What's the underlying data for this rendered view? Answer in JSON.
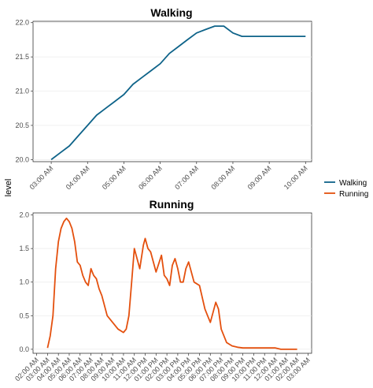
{
  "ylabel": "level",
  "legend": {
    "placement": "right",
    "items": [
      {
        "label": "Walking",
        "color": "#0e6389"
      },
      {
        "label": "Running",
        "color": "#e4500e"
      }
    ]
  },
  "chart_data": [
    {
      "type": "line",
      "title": "Walking",
      "series": [
        {
          "name": "Walking",
          "color": "#0e6389"
        }
      ],
      "x": [
        "03:00 AM",
        "03:15 AM",
        "03:30 AM",
        "03:45 AM",
        "04:00 AM",
        "04:15 AM",
        "04:30 AM",
        "04:45 AM",
        "05:00 AM",
        "05:15 AM",
        "05:30 AM",
        "05:45 AM",
        "06:00 AM",
        "06:15 AM",
        "06:30 AM",
        "06:45 AM",
        "07:00 AM",
        "07:15 AM",
        "07:30 AM",
        "07:45 AM",
        "08:00 AM",
        "08:15 AM",
        "08:30 AM",
        "09:00 AM",
        "09:30 AM",
        "10:00 AM"
      ],
      "y": [
        20.0,
        20.1,
        20.2,
        20.35,
        20.5,
        20.65,
        20.75,
        20.85,
        20.95,
        21.1,
        21.2,
        21.3,
        21.4,
        21.55,
        21.65,
        21.75,
        21.85,
        21.9,
        21.95,
        21.95,
        21.85,
        21.8,
        21.8,
        21.8,
        21.8,
        21.8
      ],
      "x_ticks": [
        "03:00 AM",
        "04:00 AM",
        "05:00 AM",
        "06:00 AM",
        "07:00 AM",
        "08:00 AM",
        "09:00 AM",
        "10:00 AM"
      ],
      "y_ticks": [
        "20.0",
        "20.5",
        "21.0",
        "21.5",
        "22.0"
      ],
      "ylim": [
        19.97,
        22.02
      ],
      "grid": true
    },
    {
      "type": "line",
      "title": "Running",
      "series": [
        {
          "name": "Running",
          "color": "#e4500e"
        }
      ],
      "x": [
        "03:00 AM",
        "03:15 AM",
        "03:30 AM",
        "03:45 AM",
        "04:00 AM",
        "04:15 AM",
        "04:30 AM",
        "04:45 AM",
        "05:00 AM",
        "05:15 AM",
        "05:30 AM",
        "05:45 AM",
        "06:00 AM",
        "06:15 AM",
        "06:30 AM",
        "06:45 AM",
        "07:00 AM",
        "07:15 AM",
        "07:30 AM",
        "07:45 AM",
        "08:00 AM",
        "08:30 AM",
        "09:00 AM",
        "09:30 AM",
        "10:00 AM",
        "10:15 AM",
        "10:30 AM",
        "10:45 AM",
        "11:00 AM",
        "11:30 AM",
        "11:50 AM",
        "12:00 PM",
        "12:15 PM",
        "12:30 PM",
        "01:00 PM",
        "01:30 PM",
        "01:45 PM",
        "02:00 PM",
        "02:15 PM",
        "02:30 PM",
        "02:45 PM",
        "03:00 PM",
        "03:15 PM",
        "03:30 PM",
        "03:45 PM",
        "04:00 PM",
        "04:30 PM",
        "05:00 PM",
        "05:30 PM",
        "05:45 PM",
        "06:00 PM",
        "06:30 PM",
        "06:45 PM",
        "07:00 PM",
        "07:30 PM",
        "08:00 PM",
        "08:30 PM",
        "09:00 PM",
        "09:30 PM",
        "10:00 PM",
        "10:30 PM",
        "11:00 PM",
        "12:00 AM",
        "12:30 AM",
        "01:00 AM",
        "01:30 AM",
        "02:00 AM"
      ],
      "y": [
        0.02,
        0.2,
        0.5,
        1.2,
        1.6,
        1.8,
        1.9,
        1.95,
        1.9,
        1.8,
        1.6,
        1.3,
        1.25,
        1.1,
        1.0,
        0.95,
        1.2,
        1.1,
        1.05,
        0.9,
        0.8,
        0.5,
        0.4,
        0.3,
        0.25,
        0.3,
        0.5,
        1.0,
        1.5,
        1.2,
        1.55,
        1.65,
        1.5,
        1.45,
        1.15,
        1.4,
        1.1,
        1.05,
        0.95,
        1.25,
        1.35,
        1.2,
        1.0,
        1.0,
        1.2,
        1.3,
        1.0,
        0.95,
        0.6,
        0.5,
        0.4,
        0.7,
        0.6,
        0.3,
        0.1,
        0.05,
        0.03,
        0.02,
        0.02,
        0.02,
        0.02,
        0.02,
        0.02,
        0.0,
        0.0,
        0.0,
        0.0
      ],
      "x_ticks": [
        "02:00 AM",
        "03:00 AM",
        "04:00 AM",
        "05:00 AM",
        "06:00 AM",
        "07:00 AM",
        "08:00 AM",
        "09:00 AM",
        "10:00 AM",
        "11:00 AM",
        "12:00 PM",
        "01:00 PM",
        "02:00 PM",
        "03:00 PM",
        "04:00 PM",
        "05:00 PM",
        "06:00 PM",
        "07:00 PM",
        "08:00 PM",
        "09:00 PM",
        "10:00 PM",
        "11:00 PM",
        "12:00 AM",
        "01:00 AM",
        "02:00 AM",
        "03:00 AM"
      ],
      "y_ticks": [
        "0.0",
        "0.5",
        "1.0",
        "1.5",
        "2.0"
      ],
      "ylim": [
        -0.06,
        2.03
      ],
      "grid": true
    }
  ]
}
